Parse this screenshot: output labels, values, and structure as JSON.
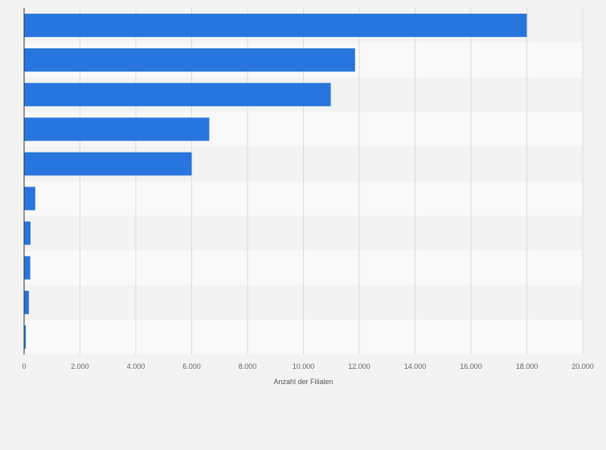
{
  "chart_data": {
    "type": "bar",
    "orientation": "horizontal",
    "categories": [
      "",
      "",
      "",
      "",
      "",
      "",
      "",
      "",
      "",
      ""
    ],
    "values": [
      18000,
      11850,
      10980,
      6630,
      6000,
      400,
      230,
      220,
      170,
      60
    ],
    "xlabel": "Anzahl der Filialen",
    "ylabel": "",
    "xlim": [
      0,
      20000
    ],
    "x_ticks": [
      0,
      2000,
      4000,
      6000,
      8000,
      10000,
      12000,
      14000,
      16000,
      18000,
      20000
    ],
    "x_tick_labels": [
      "0",
      "2.000",
      "4.000",
      "6.000",
      "8.000",
      "10.000",
      "12.000",
      "14.000",
      "16.000",
      "18.000",
      "20.000"
    ],
    "grid": true,
    "legend": "none",
    "colors": {
      "bar": "#2876dd",
      "band_light": "#f9f9f9",
      "band_dark": "#f3f3f3",
      "grid": "#dcdcdc",
      "axis": "#333333"
    }
  }
}
